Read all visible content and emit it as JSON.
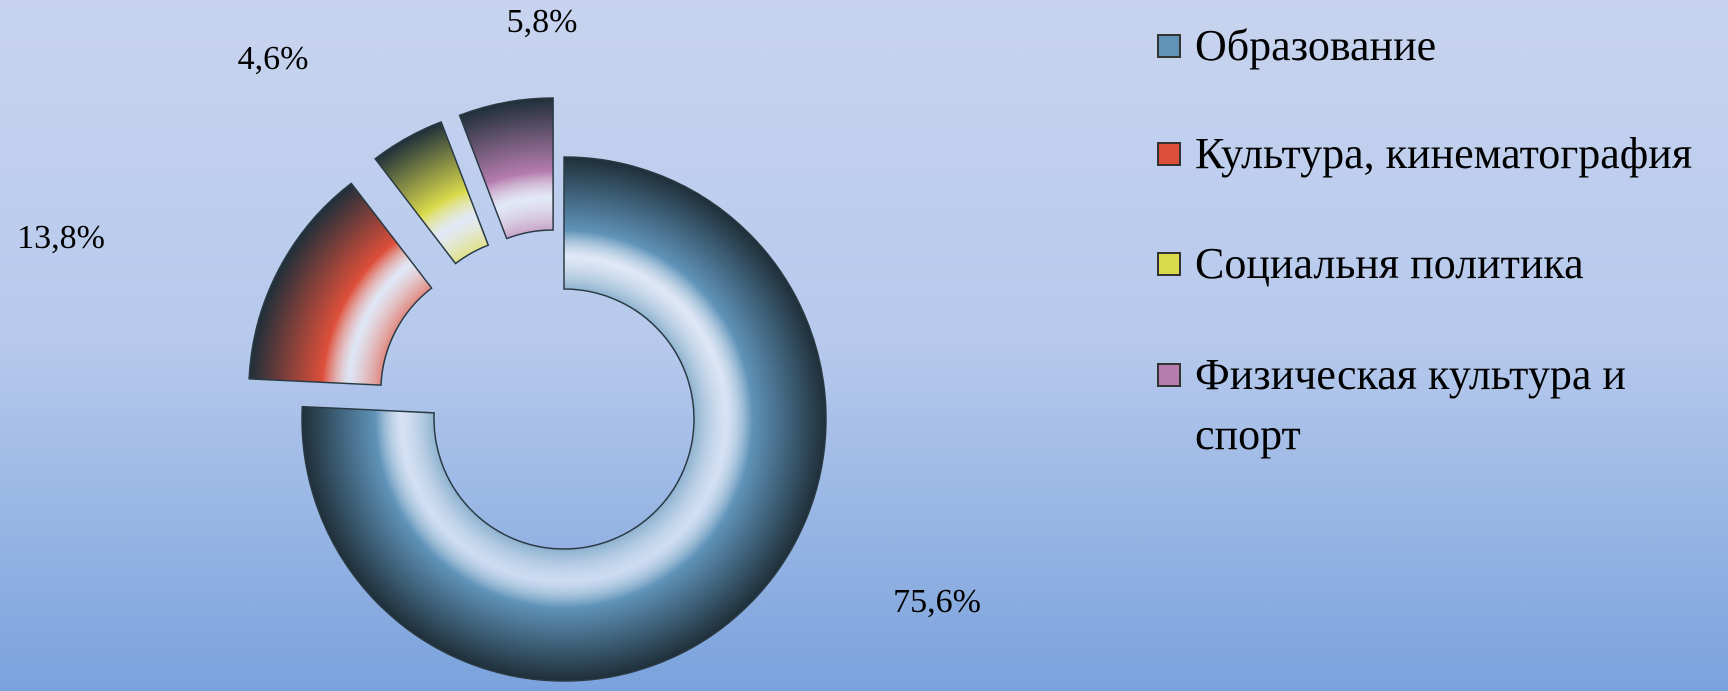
{
  "chart_data": {
    "type": "doughnut",
    "categories": [
      "Образование",
      "Культура, кинематография",
      "Социальня политика",
      "Физическая культура и спорт"
    ],
    "values": [
      75.6,
      13.8,
      4.6,
      5.8
    ],
    "value_labels": [
      "75,6%",
      "13,8%",
      "4,6%",
      "5,8%"
    ],
    "colors": [
      "#5f93b8",
      "#dd4f3a",
      "#dada4c",
      "#b57cae"
    ],
    "legend": "right"
  }
}
